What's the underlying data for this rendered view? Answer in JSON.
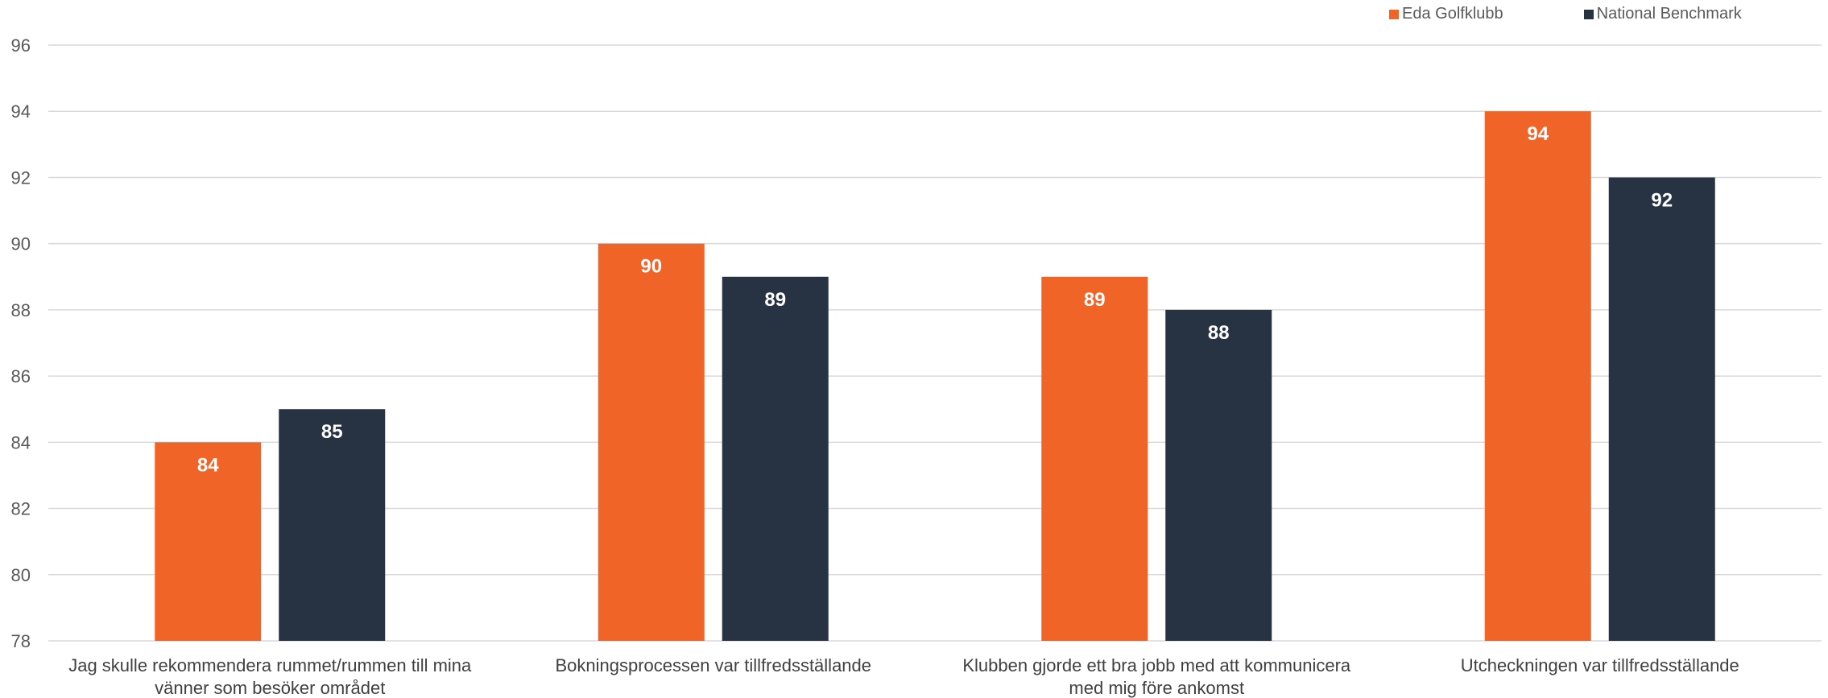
{
  "chart_data": {
    "type": "bar",
    "title": "",
    "xlabel": "",
    "ylabel": "",
    "ylim": [
      78,
      96
    ],
    "yticks": [
      78,
      80,
      82,
      84,
      86,
      88,
      90,
      92,
      94,
      96
    ],
    "grid": true,
    "legend_position": "top-right",
    "categories": [
      [
        "Jag skulle rekommendera rummet/rummen till mina",
        "vänner som besöker området"
      ],
      [
        "Bokningsprocessen var tillfredsställande"
      ],
      [
        "Klubben gjorde ett bra jobb med att kommunicera",
        "med mig före ankomst"
      ],
      [
        "Utcheckningen var tillfredsställande"
      ]
    ],
    "series": [
      {
        "name": "Eda Golfklubb",
        "color": "#f06428",
        "values": [
          84,
          90,
          89,
          94
        ]
      },
      {
        "name": "National Benchmark",
        "color": "#273343",
        "values": [
          85,
          89,
          88,
          92
        ]
      }
    ],
    "colors": {
      "grid": "#d9d9d9",
      "axis_text": "#595959",
      "data_label": "#ffffff"
    }
  }
}
